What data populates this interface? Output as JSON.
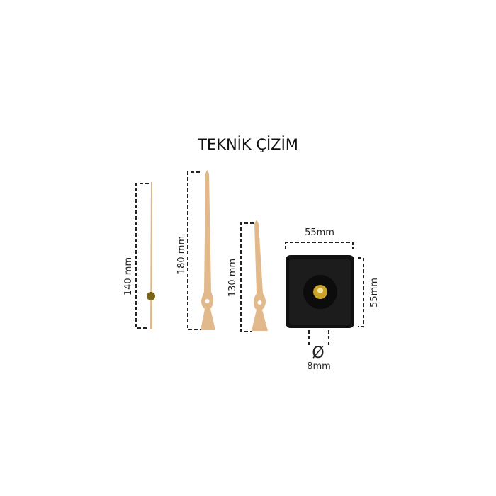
{
  "title": "TEKNİK ÇİZİM",
  "parts": {
    "second_hand": {
      "length_label": "140 mm"
    },
    "minute_hand": {
      "length_label": "180 mm"
    },
    "hour_hand": {
      "length_label": "130 mm"
    },
    "movement": {
      "width_label": "55mm",
      "height_label": "55mm",
      "shaft_symbol": "Ø",
      "shaft_label": "8mm"
    }
  },
  "colors": {
    "hand": "#e2b98a",
    "movement": "#111111",
    "shaft": "#c9a227"
  }
}
